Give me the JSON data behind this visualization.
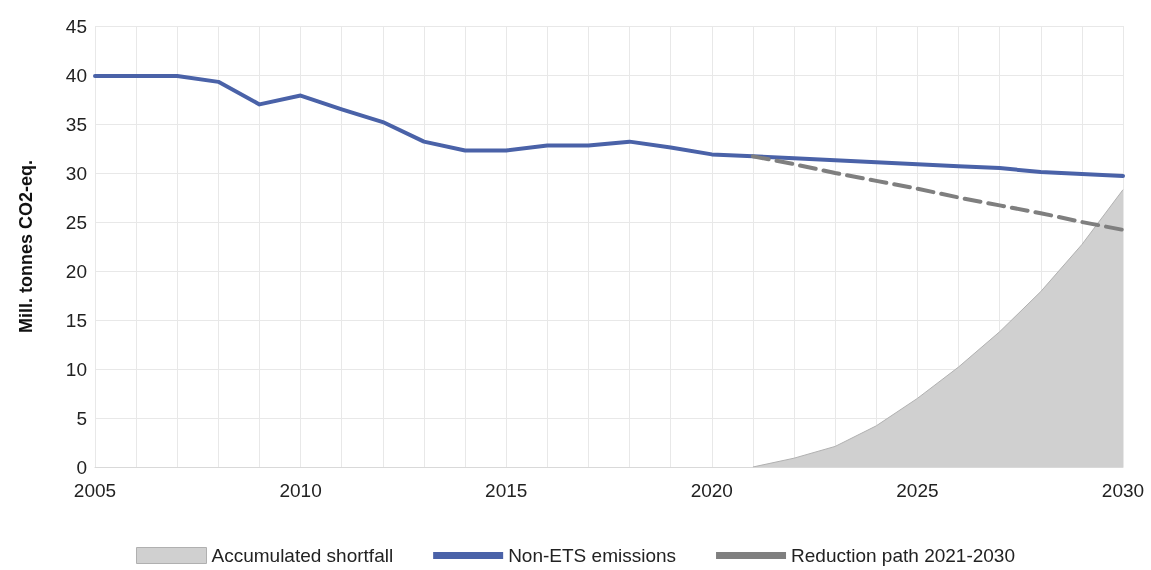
{
  "chart_data": {
    "type": "line",
    "ylabel": "Mill. tonnes CO2-eq.",
    "categories": [
      "2005",
      null,
      null,
      null,
      null,
      "2010",
      null,
      null,
      null,
      null,
      "2015",
      null,
      null,
      null,
      null,
      "2020",
      null,
      null,
      null,
      null,
      "2025",
      null,
      null,
      null,
      null,
      "2030"
    ],
    "series": [
      {
        "name": "Accumulated shortfall",
        "type": "area",
        "color": "#d0d0d0",
        "values": [
          null,
          null,
          null,
          null,
          null,
          null,
          null,
          null,
          null,
          null,
          null,
          null,
          null,
          null,
          null,
          null,
          0,
          0.9,
          2.1,
          4.2,
          7.0,
          10.2,
          13.8,
          17.9,
          22.7,
          28.3
        ]
      },
      {
        "name": "Non-ETS emissions",
        "color": "#4a62a8",
        "values": [
          39.9,
          39.9,
          39.9,
          39.3,
          37.0,
          37.9,
          36.5,
          35.2,
          33.2,
          32.3,
          32.3,
          32.8,
          32.8,
          33.2,
          32.6,
          31.9,
          31.7,
          31.5,
          31.3,
          31.1,
          30.9,
          30.7,
          30.5,
          30.1,
          29.9,
          29.7
        ]
      },
      {
        "name": "Reduction path 2021-2030",
        "color": "#7f7f7f",
        "line_style": "dashed",
        "values": [
          null,
          null,
          null,
          null,
          null,
          null,
          null,
          null,
          null,
          null,
          null,
          null,
          null,
          null,
          null,
          null,
          31.7,
          30.9,
          30.0,
          29.2,
          28.4,
          27.5,
          26.7,
          25.9,
          25.0,
          24.2
        ]
      }
    ],
    "ylim": [
      0,
      45
    ],
    "yticks": [
      0,
      5,
      10,
      15,
      20,
      25,
      30,
      35,
      40,
      45
    ],
    "grid": true,
    "legend": "bottom",
    "marker": "none"
  }
}
